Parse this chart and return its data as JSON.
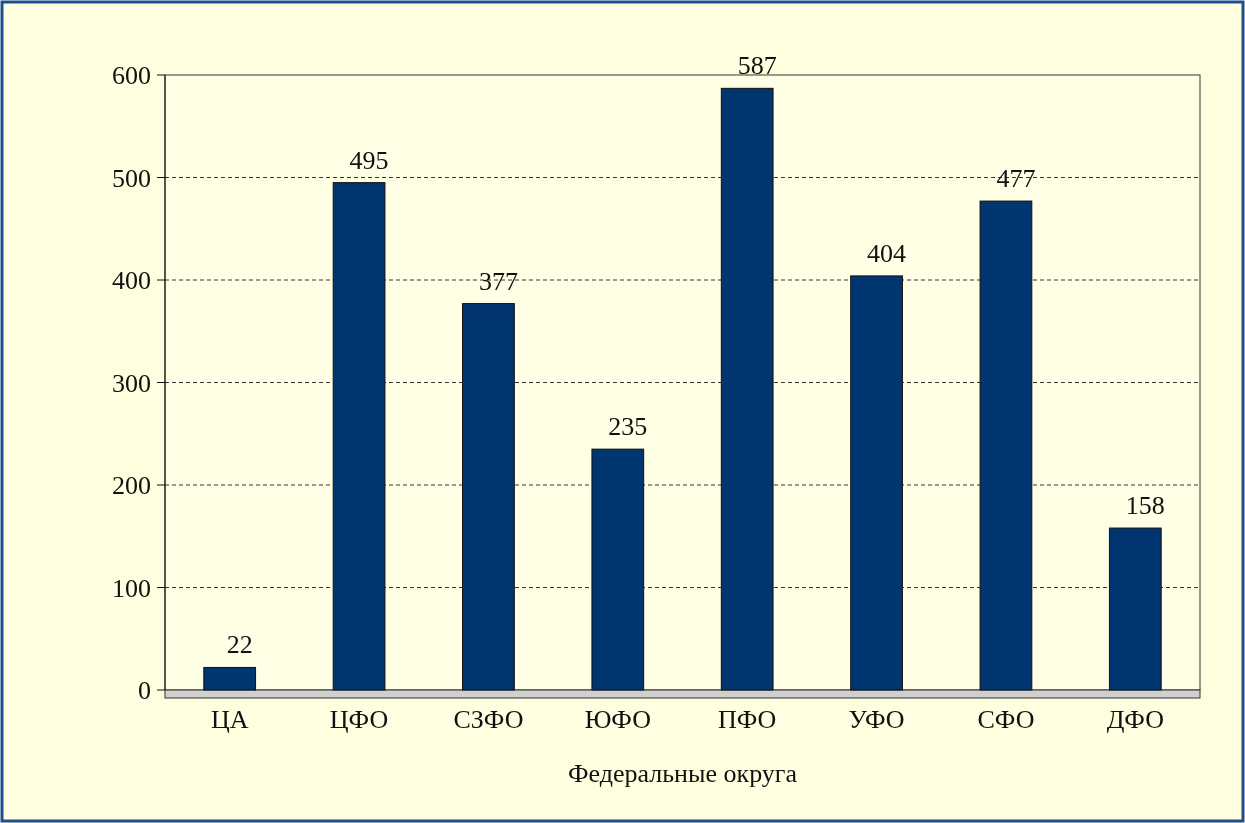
{
  "chart_data": {
    "type": "bar",
    "xlabel": "Федеральные округа",
    "categories": [
      "ЦА",
      "ЦФО",
      "СЗФО",
      "ЮФО",
      "ПФО",
      "УФО",
      "СФО",
      "ДФО"
    ],
    "values": [
      22,
      495,
      377,
      235,
      587,
      404,
      477,
      158
    ],
    "color": "#003570",
    "ylim": [
      0,
      600
    ],
    "yticks": [
      0,
      100,
      200,
      300,
      400,
      500,
      600
    ],
    "grid": "y",
    "data_labels": true
  }
}
